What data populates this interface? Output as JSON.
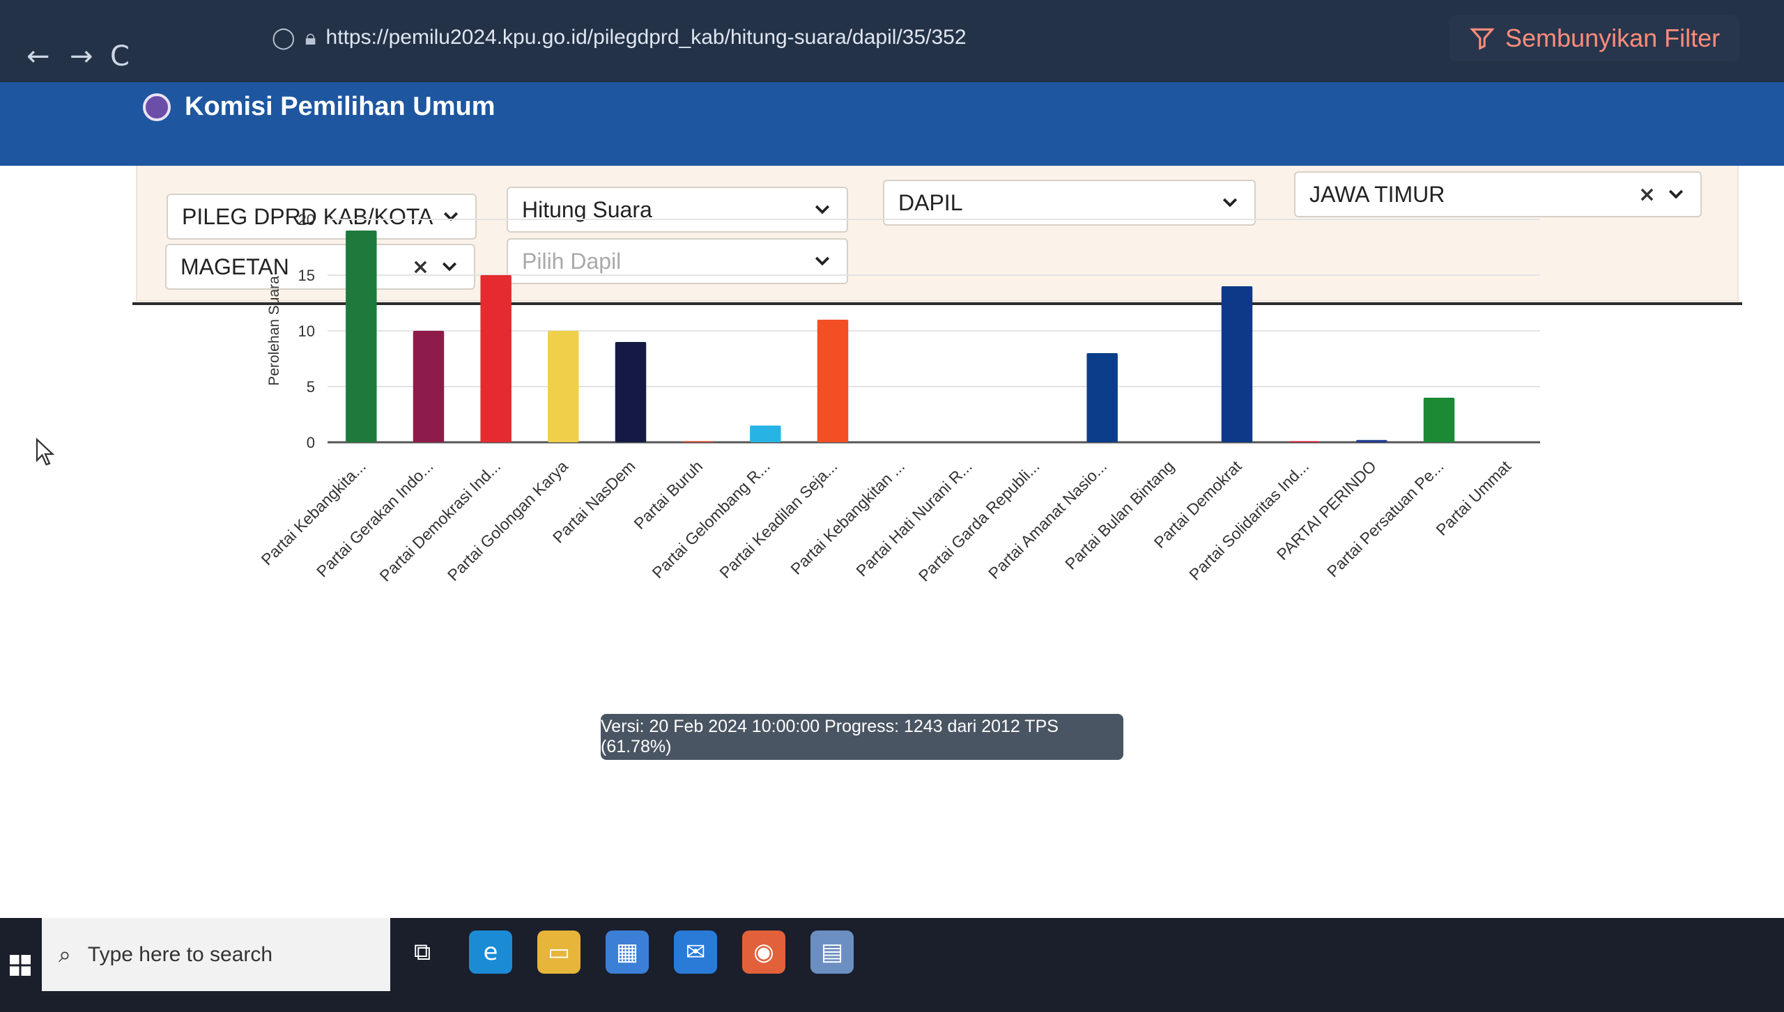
{
  "browser": {
    "url": "https://pemilu2024.kpu.go.id/pilegdprd_kab/hitung-suara/dapil/35/352",
    "back_glyph": "←",
    "forward_glyph": "→",
    "reload_glyph": "C",
    "filter_toggle_label": "Sembunyikan Filter"
  },
  "app": {
    "title": "Komisi Pemilihan Umum"
  },
  "filters": {
    "election_type": "PILEG DPRD KAB/KOTA",
    "view_mode": "Hitung Suara",
    "level": "DAPIL",
    "province": "JAWA TIMUR",
    "regency": "MAGETAN",
    "dapil_placeholder": "Pilih Dapil",
    "clear_glyph": "×"
  },
  "chart_data": {
    "type": "bar",
    "ylabel": "Perolehan Suara",
    "ylim": [
      0,
      20
    ],
    "yticks": [
      0,
      5,
      10,
      15,
      20
    ],
    "grid": true,
    "categories": [
      "Partai Kebangkita...",
      "Partai Gerakan Indo...",
      "Partai Demokrasi Ind...",
      "Partai Golongan Karya",
      "Partai NasDem",
      "Partai Buruh",
      "Partai Gelombang R...",
      "Partai Keadilan Seja...",
      "Partai Kebangkitan ...",
      "Partai Hati Nurani R...",
      "Partai Garda Republi...",
      "Partai Amanat Nasio...",
      "Partai Bulan Bintang",
      "Partai Demokrat",
      "Partai Solidaritas Ind...",
      "PARTAI PERINDO",
      "Partai Persatuan Pe...",
      "Partai Ummat"
    ],
    "values": [
      19,
      10,
      15,
      10,
      9,
      0.1,
      1.5,
      11,
      0,
      0,
      0,
      8,
      0,
      14,
      0.1,
      0.2,
      4,
      0
    ],
    "colors": [
      "#1e7a3c",
      "#8e1c4a",
      "#e52b2f",
      "#f0d04a",
      "#141a44",
      "#d84a2a",
      "#27b4e4",
      "#f24f24",
      "#2a4f8f",
      "#e27a1f",
      "#b2202a",
      "#0b3e8a",
      "#1f7a3a",
      "#0e3888",
      "#d6203a",
      "#1f3b8f",
      "#1c8a35",
      "#2c3a70"
    ]
  },
  "status": {
    "version_text": "Versi: 20 Feb 2024 10:00:00 Progress: 1243 dari 2012 TPS (61.78%)",
    "progress_fraction": 0.6178
  },
  "taskbar": {
    "search_placeholder": "Type here to search",
    "apps": [
      {
        "name": "task-view",
        "color": "#1a1f2b"
      },
      {
        "name": "edge",
        "color": "#1b8bd6"
      },
      {
        "name": "file-explorer",
        "color": "#e6b53a"
      },
      {
        "name": "store",
        "color": "#3c7fd6"
      },
      {
        "name": "mail",
        "color": "#2a7bd8"
      },
      {
        "name": "firefox",
        "color": "#e2613a"
      },
      {
        "name": "calculator",
        "color": "#6c8fc2"
      }
    ]
  }
}
